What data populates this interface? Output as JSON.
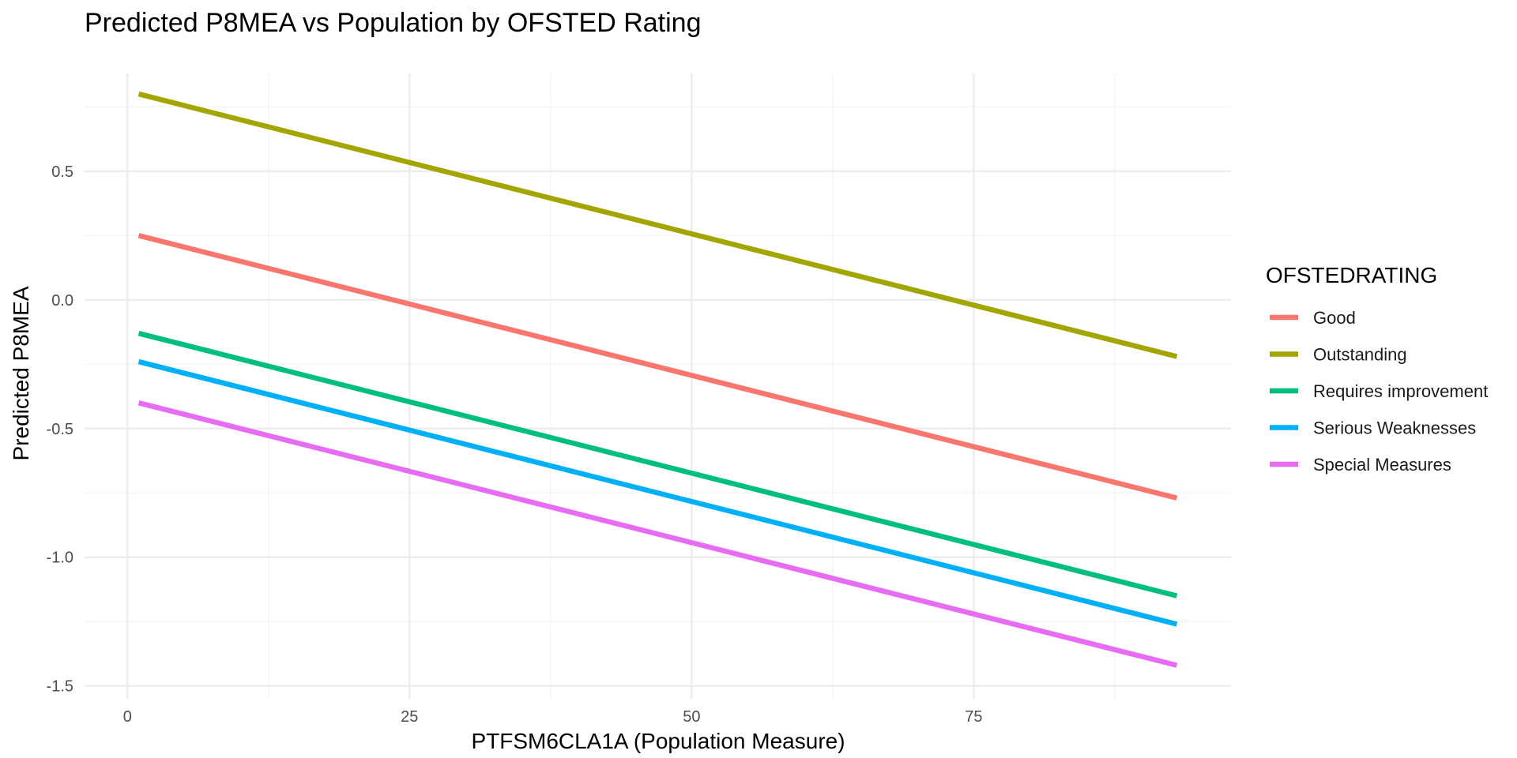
{
  "chart_data": {
    "type": "line",
    "title": "Predicted P8MEA vs Population by OFSTED Rating",
    "xlabel": "PTFSM6CLA1A (Population Measure)",
    "ylabel": "Predicted P8MEA",
    "xlim": [
      -3.8,
      97.8
    ],
    "ylim": [
      -1.55,
      0.88
    ],
    "x_ticks": [
      0,
      25,
      50,
      75
    ],
    "x_tick_labels": [
      "0",
      "25",
      "50",
      "75"
    ],
    "x_minor_ticks": [
      12.5,
      37.5,
      62.5,
      87.5
    ],
    "y_ticks": [
      -1.5,
      -1.0,
      -0.5,
      0.0,
      0.5
    ],
    "y_tick_labels": [
      "-1.5",
      "-1.0",
      "-0.5",
      "0.0",
      "0.5"
    ],
    "y_minor_ticks": [
      -1.25,
      -0.75,
      -0.25,
      0.25,
      0.75
    ],
    "grid": true,
    "legend": {
      "title": "OFSTEDRATING",
      "position": "right"
    },
    "series": [
      {
        "name": "Good",
        "color": "#F8766D",
        "x": [
          1.0,
          93.0
        ],
        "y": [
          0.25,
          -0.77
        ]
      },
      {
        "name": "Outstanding",
        "color": "#A3A500",
        "x": [
          1.0,
          93.0
        ],
        "y": [
          0.8,
          -0.22
        ]
      },
      {
        "name": "Requires improvement",
        "color": "#00BF7D",
        "x": [
          1.0,
          93.0
        ],
        "y": [
          -0.13,
          -1.15
        ]
      },
      {
        "name": "Serious Weaknesses",
        "color": "#00B0F6",
        "x": [
          1.0,
          93.0
        ],
        "y": [
          -0.24,
          -1.26
        ]
      },
      {
        "name": "Special Measures",
        "color": "#E76BF3",
        "x": [
          1.0,
          93.0
        ],
        "y": [
          -0.4,
          -1.42
        ]
      }
    ]
  }
}
